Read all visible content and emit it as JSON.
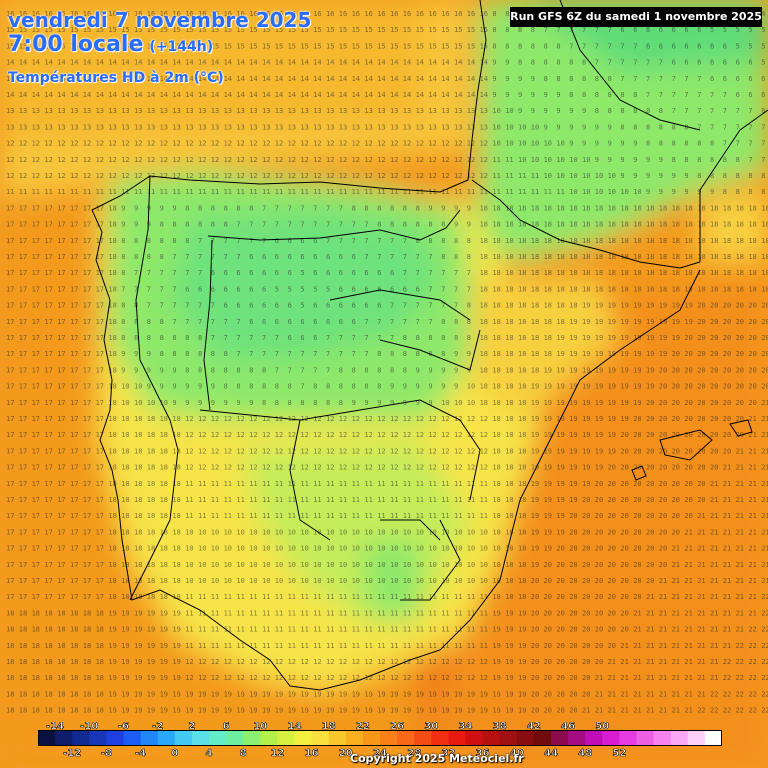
{
  "header": {
    "date_line": "vendredi 7 novembre 2025",
    "time_line": "7:00 locale",
    "lead_time": "(+144h)",
    "product": "Températures HD à 2m (°C)"
  },
  "run_info": "Run GFS 6Z du samedi 1 novembre 2025",
  "copyright": "Copyright 2025 Meteociel.fr",
  "legend": {
    "colors": [
      "#0a1040",
      "#0e1c6a",
      "#102a92",
      "#1836b8",
      "#1e40e0",
      "#1a5cf4",
      "#1e86f8",
      "#2aa8f8",
      "#44c8f4",
      "#5ae0e8",
      "#62ecc8",
      "#6cf0a0",
      "#8cf070",
      "#b0f048",
      "#d6f040",
      "#f4f040",
      "#f8e040",
      "#f8c82c",
      "#f8b020",
      "#f89818",
      "#f88018",
      "#f86818",
      "#f44c14",
      "#f03010",
      "#e81a10",
      "#d01010",
      "#b81010",
      "#a01010",
      "#880c10",
      "#700c0c",
      "#8a0c4c",
      "#a40c84",
      "#c00cb4",
      "#d81cd0",
      "#e43ce0",
      "#ec60e4",
      "#f484ec",
      "#f8a8f4",
      "#fcd0fa",
      "#ffffff"
    ],
    "top_labels": [
      "-14",
      "-10",
      "-6",
      "-2",
      "2",
      "6",
      "10",
      "14",
      "18",
      "22",
      "26",
      "30",
      "34",
      "38",
      "42",
      "46",
      "50"
    ],
    "bottom_labels": [
      "-12",
      "-8",
      "-4",
      "0",
      "4",
      "8",
      "12",
      "16",
      "20",
      "24",
      "28",
      "32",
      "36",
      "40",
      "44",
      "48",
      "52"
    ]
  },
  "map": {
    "description_colors": {
      "sea": "#f39a1e",
      "inland": "#8ee86a",
      "warm_land": "#f6e84a",
      "hot": "#f47a1e"
    }
  }
}
